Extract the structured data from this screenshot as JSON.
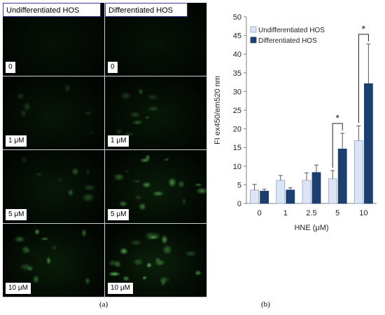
{
  "panel_a": {
    "headers": [
      "Undifferentiated HOS",
      "Differentiated HOS"
    ],
    "doses": [
      "0",
      "1 μM",
      "5 μM",
      "10 μM"
    ],
    "caption": "(a)"
  },
  "panel_b": {
    "caption": "(b)"
  },
  "colors": {
    "undifferentiated": "#dbe5f3",
    "differentiated": "#1b3f6e",
    "fluorescence": "#5fd35f"
  },
  "chart_data": {
    "type": "bar",
    "categories": [
      "0",
      "1",
      "2.5",
      "5",
      "10"
    ],
    "series": [
      {
        "name": "Undifferentiated HOS",
        "values": [
          3.6,
          6.2,
          6.2,
          6.6,
          16.8
        ],
        "errors": [
          1.5,
          1.3,
          2.0,
          2.2,
          4.0
        ]
      },
      {
        "name": "Differentiated HOS",
        "values": [
          3.3,
          3.6,
          8.3,
          14.6,
          32.1
        ],
        "errors": [
          0.5,
          0.6,
          2.0,
          4.2,
          10.6
        ]
      }
    ],
    "title": "",
    "xlabel": "HNE (μM)",
    "ylabel": "FI ex450/em520 nm",
    "ylim": [
      0,
      50
    ],
    "yticks": [
      0,
      5,
      10,
      15,
      20,
      25,
      30,
      35,
      40,
      45,
      50
    ],
    "legend_position": "top-left",
    "significance": [
      {
        "category": "5",
        "label": "*"
      },
      {
        "category": "10",
        "label": "*"
      }
    ],
    "grid": false
  }
}
